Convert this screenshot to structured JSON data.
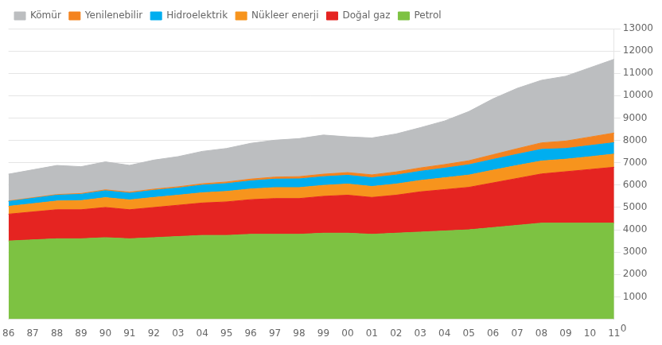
{
  "chart_data": {
    "type": "area",
    "stacked": true,
    "categories": [
      "86",
      "87",
      "88",
      "89",
      "90",
      "91",
      "92",
      "03",
      "04",
      "95",
      "96",
      "97",
      "98",
      "99",
      "00",
      "01",
      "02",
      "03",
      "04",
      "05",
      "06",
      "07",
      "08",
      "09",
      "10",
      "11"
    ],
    "series": [
      {
        "name": "Petrol",
        "color": "#7dc242",
        "values": [
          3500,
          3550,
          3600,
          3600,
          3650,
          3600,
          3650,
          3700,
          3750,
          3750,
          3800,
          3800,
          3800,
          3850,
          3850,
          3800,
          3850,
          3900,
          3950,
          4000,
          4100,
          4200,
          4300,
          4300,
          4300,
          4300
        ]
      },
      {
        "name": "Doğal gaz",
        "color": "#e52421",
        "values": [
          1200,
          1250,
          1300,
          1300,
          1350,
          1300,
          1350,
          1400,
          1450,
          1500,
          1550,
          1600,
          1600,
          1650,
          1700,
          1650,
          1700,
          1800,
          1850,
          1900,
          2000,
          2100,
          2200,
          2300,
          2400,
          2500
        ]
      },
      {
        "name": "Nükleer enerji",
        "color": "#f7941d",
        "values": [
          350,
          370,
          390,
          410,
          440,
          440,
          450,
          450,
          460,
          470,
          480,
          490,
          490,
          490,
          500,
          490,
          500,
          510,
          530,
          550,
          570,
          580,
          580,
          560,
          570,
          590
        ]
      },
      {
        "name": "Hidroelektrik",
        "color": "#00aeef",
        "values": [
          220,
          240,
          260,
          280,
          310,
          300,
          320,
          320,
          340,
          350,
          360,
          380,
          390,
          390,
          390,
          390,
          400,
          410,
          430,
          460,
          480,
          500,
          520,
          480,
          500,
          510
        ]
      },
      {
        "name": "Yenilenebilir",
        "color": "#f4831f",
        "values": [
          20,
          25,
          30,
          35,
          40,
          45,
          50,
          55,
          60,
          70,
          80,
          90,
          100,
          110,
          120,
          130,
          140,
          150,
          160,
          180,
          210,
          250,
          290,
          330,
          380,
          430
        ]
      },
      {
        "name": "Kömür",
        "color": "#bcbec0",
        "values": [
          1200,
          1250,
          1300,
          1200,
          1250,
          1200,
          1300,
          1350,
          1450,
          1500,
          1600,
          1650,
          1700,
          1750,
          1600,
          1650,
          1700,
          1800,
          1950,
          2200,
          2500,
          2700,
          2800,
          2900,
          3100,
          3300
        ]
      }
    ],
    "ylim": [
      0,
      13000
    ],
    "yticks": [
      1000,
      2000,
      3000,
      4000,
      5000,
      6000,
      7000,
      8000,
      9000,
      10000,
      11000,
      12000,
      13000
    ],
    "grid": true,
    "legend": "upper left",
    "annotations": [
      "0"
    ]
  }
}
